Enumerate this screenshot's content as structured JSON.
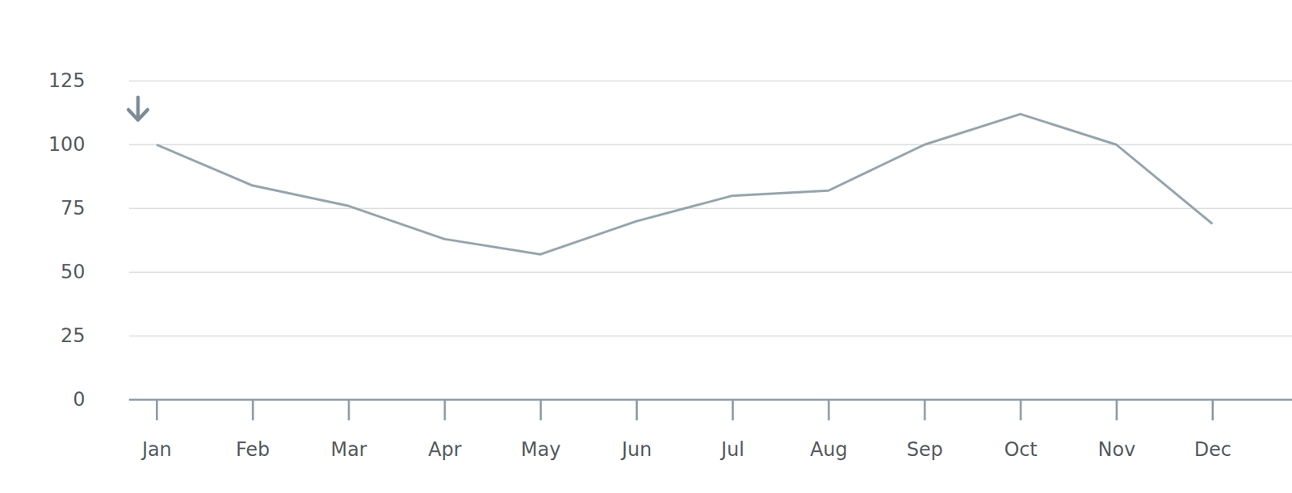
{
  "chart_data": {
    "type": "line",
    "categories": [
      "Jan",
      "Feb",
      "Mar",
      "Apr",
      "May",
      "Jun",
      "Jul",
      "Aug",
      "Sep",
      "Oct",
      "Nov",
      "Dec"
    ],
    "values": [
      100,
      84,
      76,
      63,
      57,
      70,
      80,
      82,
      100,
      112,
      100,
      69
    ],
    "color": "#97a5ad",
    "ylim": [
      0,
      125
    ],
    "yticks": [
      0,
      25,
      50,
      75,
      100,
      125
    ],
    "grid": true
  }
}
